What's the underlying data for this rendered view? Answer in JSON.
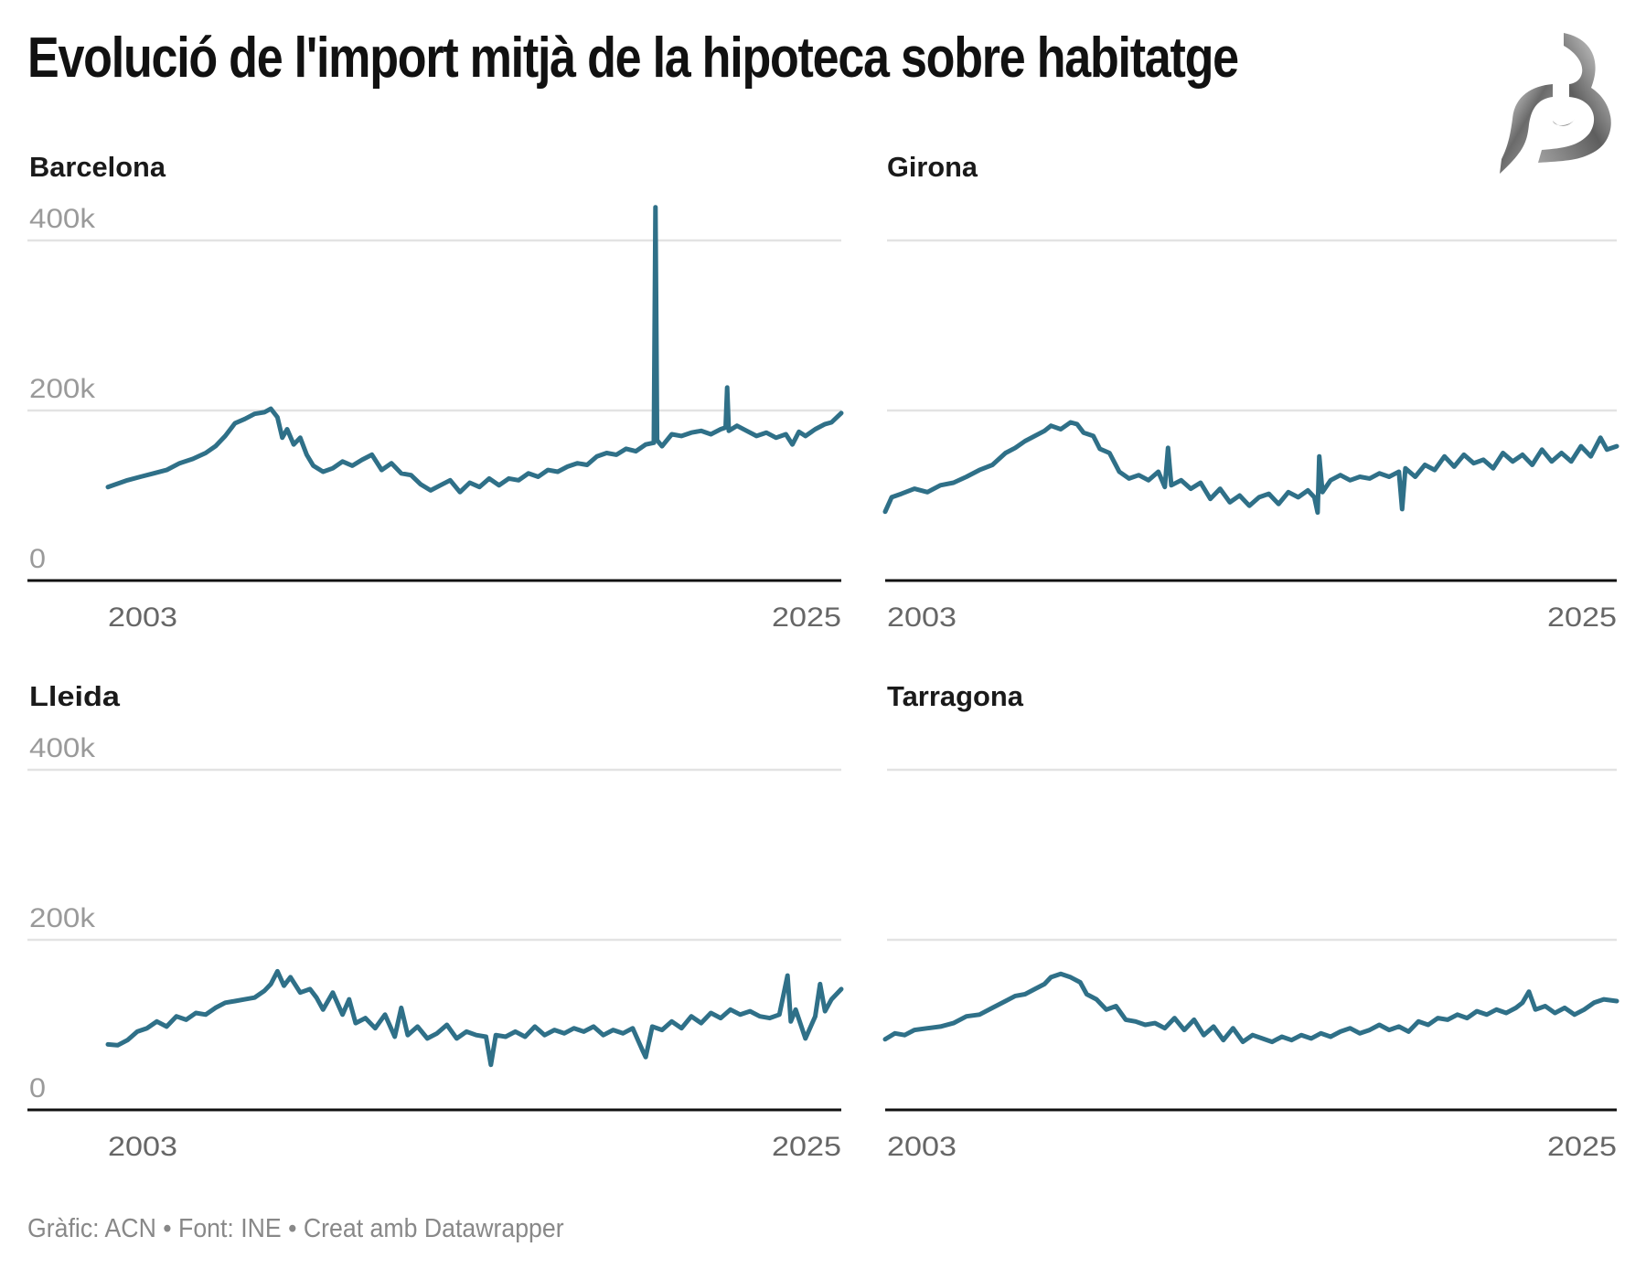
{
  "title": "Evolució de l'import mitjà de la hipoteca sobre habitatge",
  "footer": {
    "chart_credit": "Gràfic: ACN",
    "source": "Font: INE",
    "tool": "Creat amb Datawrapper",
    "separator": "•"
  },
  "logo": {
    "icon": "b-logo-icon"
  },
  "colors": {
    "line": "#2f7088",
    "grid": "#e3e3e3",
    "baseline": "#111111",
    "tick_label": "#9a9a9a",
    "x_label": "#666666"
  },
  "chart_data": [
    {
      "type": "line",
      "title": "Barcelona",
      "xlabel": "",
      "ylabel": "",
      "xlim": [
        2003,
        2025.5
      ],
      "ylim": [
        0,
        400000
      ],
      "yticks": [
        0,
        200000,
        400000
      ],
      "ytick_labels": [
        "0",
        "200k",
        "400k"
      ],
      "xtick_labels": [
        "2003",
        "2025"
      ],
      "grid": true,
      "x": [
        2003.0,
        2003.3,
        2003.6,
        2004.0,
        2004.4,
        2004.8,
        2005.2,
        2005.6,
        2006.0,
        2006.3,
        2006.6,
        2006.9,
        2007.2,
        2007.5,
        2007.8,
        2008.0,
        2008.2,
        2008.35,
        2008.5,
        2008.7,
        2008.9,
        2009.1,
        2009.3,
        2009.6,
        2009.9,
        2010.2,
        2010.5,
        2010.8,
        2011.1,
        2011.4,
        2011.7,
        2012.0,
        2012.3,
        2012.6,
        2012.9,
        2013.2,
        2013.5,
        2013.8,
        2014.1,
        2014.4,
        2014.7,
        2015.0,
        2015.3,
        2015.6,
        2015.9,
        2016.2,
        2016.5,
        2016.8,
        2017.1,
        2017.4,
        2017.7,
        2018.0,
        2018.3,
        2018.6,
        2018.9,
        2019.2,
        2019.5,
        2019.75,
        2019.8,
        2019.85,
        2020.0,
        2020.3,
        2020.6,
        2020.9,
        2021.2,
        2021.5,
        2021.8,
        2021.95,
        2022.0,
        2022.05,
        2022.3,
        2022.6,
        2022.9,
        2023.2,
        2023.5,
        2023.8,
        2024.0,
        2024.2,
        2024.4,
        2024.7,
        2025.0,
        2025.2,
        2025.5
      ],
      "series": [
        {
          "name": "Barcelona",
          "values": [
            110000,
            114000,
            118000,
            122000,
            126000,
            130000,
            138000,
            143000,
            150000,
            158000,
            170000,
            185000,
            190000,
            196000,
            198000,
            202000,
            192000,
            168000,
            178000,
            160000,
            168000,
            148000,
            135000,
            128000,
            132000,
            140000,
            135000,
            142000,
            148000,
            130000,
            138000,
            126000,
            124000,
            113000,
            106000,
            112000,
            118000,
            104000,
            115000,
            110000,
            120000,
            112000,
            120000,
            118000,
            126000,
            122000,
            130000,
            128000,
            134000,
            138000,
            136000,
            146000,
            150000,
            148000,
            155000,
            152000,
            160000,
            162000,
            439000,
            165000,
            158000,
            172000,
            170000,
            174000,
            176000,
            172000,
            178000,
            180000,
            227000,
            176000,
            182000,
            176000,
            170000,
            174000,
            168000,
            172000,
            160000,
            175000,
            170000,
            178000,
            184000,
            186000,
            197000
          ]
        }
      ]
    },
    {
      "type": "line",
      "title": "Girona",
      "xlabel": "",
      "ylabel": "",
      "xlim": [
        2003,
        2025.5
      ],
      "ylim": [
        0,
        400000
      ],
      "yticks": [
        0,
        200000,
        400000
      ],
      "xtick_labels": [
        "2003",
        "2025"
      ],
      "grid": true,
      "x": [
        2003.0,
        2003.2,
        2003.5,
        2003.9,
        2004.3,
        2004.7,
        2005.1,
        2005.5,
        2005.9,
        2006.3,
        2006.7,
        2007.0,
        2007.3,
        2007.6,
        2007.9,
        2008.1,
        2008.4,
        2008.7,
        2008.9,
        2009.1,
        2009.4,
        2009.6,
        2009.9,
        2010.2,
        2010.5,
        2010.8,
        2011.1,
        2011.4,
        2011.6,
        2011.7,
        2011.8,
        2012.1,
        2012.4,
        2012.7,
        2013.0,
        2013.3,
        2013.6,
        2013.9,
        2014.2,
        2014.5,
        2014.8,
        2015.1,
        2015.4,
        2015.7,
        2016.0,
        2016.2,
        2016.3,
        2016.35,
        2016.45,
        2016.7,
        2017.0,
        2017.3,
        2017.6,
        2017.9,
        2018.2,
        2018.5,
        2018.8,
        2018.9,
        2019.0,
        2019.3,
        2019.6,
        2019.9,
        2020.2,
        2020.5,
        2020.8,
        2021.1,
        2021.4,
        2021.7,
        2022.0,
        2022.3,
        2022.6,
        2022.9,
        2023.2,
        2023.5,
        2023.8,
        2024.1,
        2024.4,
        2024.7,
        2025.0,
        2025.2,
        2025.5
      ],
      "series": [
        {
          "name": "Girona",
          "values": [
            81000,
            98000,
            102000,
            108000,
            104000,
            112000,
            115000,
            122000,
            130000,
            136000,
            150000,
            156000,
            164000,
            170000,
            176000,
            182000,
            178000,
            186000,
            184000,
            174000,
            170000,
            155000,
            150000,
            128000,
            120000,
            124000,
            118000,
            128000,
            110000,
            156000,
            112000,
            118000,
            108000,
            115000,
            96000,
            108000,
            92000,
            100000,
            88000,
            98000,
            102000,
            90000,
            104000,
            98000,
            106000,
            98000,
            80000,
            146000,
            104000,
            118000,
            124000,
            118000,
            122000,
            120000,
            126000,
            122000,
            128000,
            84000,
            132000,
            122000,
            136000,
            130000,
            146000,
            134000,
            148000,
            138000,
            142000,
            132000,
            150000,
            140000,
            148000,
            136000,
            154000,
            140000,
            150000,
            140000,
            158000,
            146000,
            168000,
            154000,
            158000
          ]
        }
      ]
    },
    {
      "type": "line",
      "title": "Lleida",
      "xlabel": "",
      "ylabel": "",
      "xlim": [
        2003,
        2025.5
      ],
      "ylim": [
        0,
        400000
      ],
      "yticks": [
        0,
        200000,
        400000
      ],
      "ytick_labels": [
        "0",
        "200k",
        "400k"
      ],
      "xtick_labels": [
        "2003",
        "2025"
      ],
      "grid": true,
      "x": [
        2003.0,
        2003.3,
        2003.6,
        2003.9,
        2004.2,
        2004.5,
        2004.8,
        2005.1,
        2005.4,
        2005.7,
        2006.0,
        2006.3,
        2006.6,
        2006.9,
        2007.2,
        2007.5,
        2007.8,
        2008.0,
        2008.2,
        2008.4,
        2008.6,
        2008.9,
        2009.2,
        2009.4,
        2009.6,
        2009.9,
        2010.2,
        2010.4,
        2010.6,
        2010.9,
        2011.2,
        2011.5,
        2011.8,
        2012.0,
        2012.2,
        2012.5,
        2012.8,
        2013.1,
        2013.4,
        2013.7,
        2014.0,
        2014.3,
        2014.6,
        2014.75,
        2014.9,
        2015.2,
        2015.5,
        2015.8,
        2016.1,
        2016.4,
        2016.7,
        2017.0,
        2017.3,
        2017.6,
        2017.9,
        2018.2,
        2018.5,
        2018.8,
        2019.1,
        2019.4,
        2019.5,
        2019.7,
        2020.0,
        2020.3,
        2020.6,
        2020.9,
        2021.2,
        2021.5,
        2021.8,
        2022.1,
        2022.4,
        2022.7,
        2023.0,
        2023.3,
        2023.6,
        2023.85,
        2023.95,
        2024.1,
        2024.4,
        2024.7,
        2024.85,
        2025.0,
        2025.2,
        2025.5
      ],
      "series": [
        {
          "name": "Lleida",
          "values": [
            77000,
            76000,
            82000,
            92000,
            96000,
            104000,
            98000,
            110000,
            106000,
            114000,
            112000,
            120000,
            126000,
            128000,
            130000,
            132000,
            140000,
            148000,
            163000,
            146000,
            156000,
            138000,
            142000,
            132000,
            118000,
            138000,
            112000,
            130000,
            102000,
            108000,
            96000,
            112000,
            86000,
            120000,
            88000,
            98000,
            84000,
            90000,
            100000,
            84000,
            92000,
            88000,
            86000,
            53000,
            88000,
            86000,
            92000,
            86000,
            98000,
            88000,
            94000,
            90000,
            96000,
            92000,
            98000,
            88000,
            94000,
            90000,
            96000,
            70000,
            62000,
            98000,
            94000,
            104000,
            96000,
            110000,
            102000,
            114000,
            108000,
            118000,
            112000,
            116000,
            110000,
            108000,
            112000,
            158000,
            104000,
            118000,
            84000,
            110000,
            148000,
            116000,
            130000,
            142000
          ]
        }
      ]
    },
    {
      "type": "line",
      "title": "Tarragona",
      "xlabel": "",
      "ylabel": "",
      "xlim": [
        2003,
        2025.5
      ],
      "ylim": [
        0,
        400000
      ],
      "yticks": [
        0,
        200000,
        400000
      ],
      "xtick_labels": [
        "2003",
        "2025"
      ],
      "grid": true,
      "x": [
        2003.0,
        2003.3,
        2003.6,
        2003.9,
        2004.3,
        2004.7,
        2005.1,
        2005.5,
        2005.9,
        2006.3,
        2006.7,
        2007.0,
        2007.3,
        2007.6,
        2007.9,
        2008.1,
        2008.4,
        2008.7,
        2009.0,
        2009.2,
        2009.5,
        2009.8,
        2010.1,
        2010.4,
        2010.7,
        2011.0,
        2011.3,
        2011.6,
        2011.9,
        2012.2,
        2012.5,
        2012.8,
        2013.1,
        2013.4,
        2013.7,
        2014.0,
        2014.3,
        2014.6,
        2014.9,
        2015.2,
        2015.5,
        2015.8,
        2016.1,
        2016.4,
        2016.7,
        2017.0,
        2017.3,
        2017.6,
        2017.9,
        2018.2,
        2018.5,
        2018.8,
        2019.1,
        2019.4,
        2019.7,
        2020.0,
        2020.3,
        2020.6,
        2020.9,
        2021.2,
        2021.5,
        2021.8,
        2022.1,
        2022.4,
        2022.6,
        2022.8,
        2023.0,
        2023.3,
        2023.6,
        2023.9,
        2024.2,
        2024.5,
        2024.8,
        2025.1,
        2025.5
      ],
      "series": [
        {
          "name": "Tarragona",
          "values": [
            83000,
            90000,
            88000,
            94000,
            96000,
            98000,
            102000,
            110000,
            112000,
            120000,
            128000,
            134000,
            136000,
            142000,
            148000,
            156000,
            160000,
            156000,
            150000,
            136000,
            130000,
            118000,
            122000,
            106000,
            104000,
            100000,
            102000,
            96000,
            108000,
            94000,
            106000,
            88000,
            98000,
            82000,
            96000,
            80000,
            88000,
            84000,
            80000,
            86000,
            82000,
            88000,
            84000,
            90000,
            86000,
            92000,
            96000,
            90000,
            94000,
            100000,
            94000,
            98000,
            92000,
            104000,
            100000,
            108000,
            106000,
            112000,
            108000,
            116000,
            112000,
            118000,
            114000,
            120000,
            126000,
            139000,
            118000,
            122000,
            114000,
            120000,
            112000,
            118000,
            126000,
            130000,
            128000
          ]
        }
      ]
    }
  ]
}
